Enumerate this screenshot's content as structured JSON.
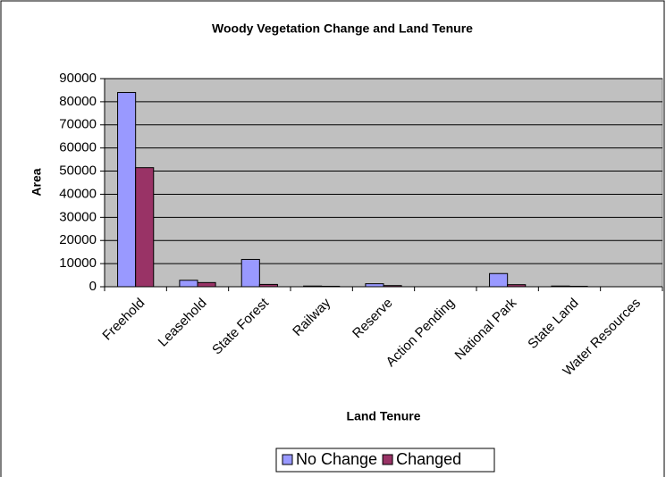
{
  "chart_data": {
    "type": "bar",
    "title": "Woody Vegetation Change and Land Tenure",
    "x_label": "Land Tenure",
    "y_label": "Area",
    "categories": [
      "Freehold",
      "Leasehold",
      "State Forest",
      "Railway",
      "Reserve",
      "Action Pending",
      "National Park",
      "State Land",
      "Water Resources"
    ],
    "series": [
      {
        "name": "No Change",
        "color": "#9999ff",
        "values": [
          84000,
          2800,
          11800,
          300,
          1300,
          0,
          5700,
          300,
          0
        ]
      },
      {
        "name": "Changed",
        "color": "#993366",
        "values": [
          51500,
          1800,
          1000,
          200,
          500,
          0,
          900,
          200,
          0
        ]
      }
    ],
    "ylim": [
      0,
      90000
    ],
    "yticks": [
      0,
      10000,
      20000,
      30000,
      40000,
      50000,
      60000,
      70000,
      80000,
      90000
    ],
    "grid": true,
    "legend": "bottom"
  }
}
